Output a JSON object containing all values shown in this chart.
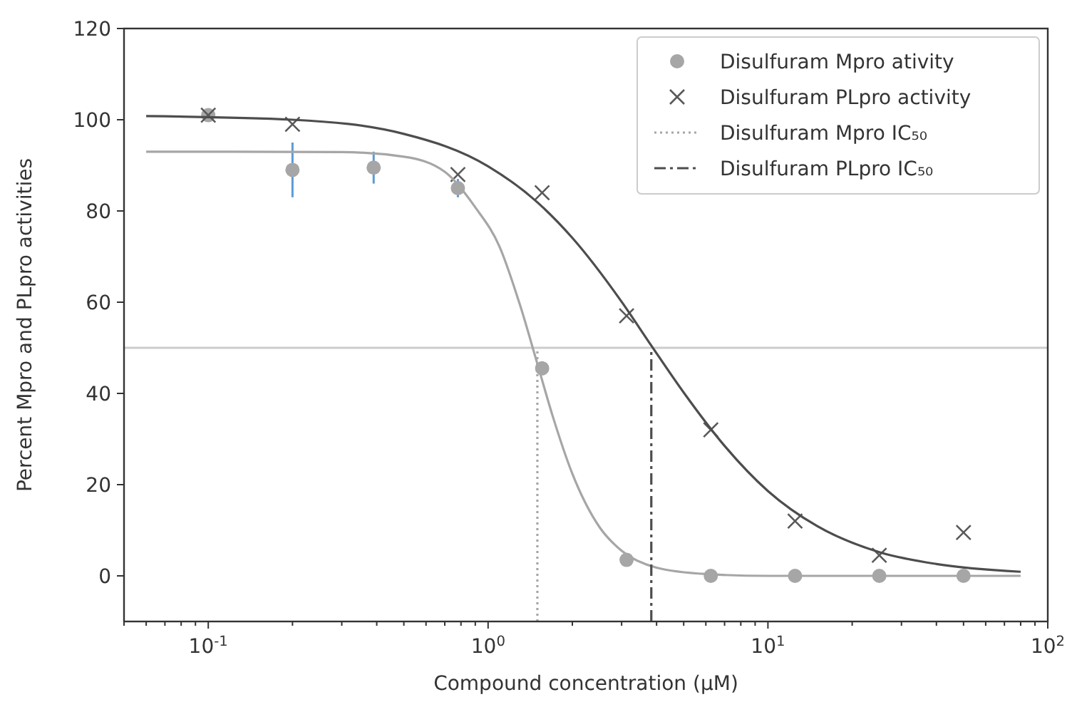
{
  "chart_data": {
    "type": "scatter",
    "xlabel": "Compound concentration (µM)",
    "ylabel": "Percent Mpro and PLpro activities",
    "log": "x",
    "xlim": [
      0.05,
      100
    ],
    "xticks": [
      {
        "value": 0.1,
        "label": "10$^{-1}$"
      },
      {
        "value": 1,
        "label": "10$^{0}$"
      },
      {
        "value": 10,
        "label": "10$^{1}$"
      },
      {
        "value": 100,
        "label": "10$^{2}$"
      }
    ],
    "ylim": [
      -10,
      120
    ],
    "yticks": [
      0,
      20,
      40,
      60,
      80,
      100,
      120
    ],
    "grid": false,
    "legend": "top right",
    "ref_lines": [
      {
        "axis": "y",
        "value": 50,
        "color": "#cccccc",
        "line_style": "solid"
      }
    ],
    "series": [
      {
        "name": "Disulfuram Mpro ativity",
        "marker": "circle",
        "color": "#a6a6a6",
        "x": [
          0.1,
          0.2,
          0.39,
          0.78,
          1.56,
          3.125,
          6.25,
          12.5,
          25,
          50
        ],
        "values": [
          101,
          89,
          89.5,
          85,
          45.5,
          3.5,
          0,
          0,
          0,
          0
        ],
        "errors": [
          null,
          6,
          3.5,
          2,
          null,
          null,
          null,
          null,
          null,
          null
        ]
      },
      {
        "name": "Disulfuram PLpro activity",
        "marker": "cross",
        "color": "#595959",
        "x": [
          0.1,
          0.2,
          0.78,
          1.56,
          3.125,
          6.25,
          12.5,
          25,
          50
        ],
        "values": [
          101,
          99,
          88,
          84,
          57,
          32,
          12,
          4.5,
          9.5
        ]
      },
      {
        "type": "line",
        "marker": "none",
        "line_style": "solid",
        "color": "#a6a6a6",
        "x": [
          0.06,
          0.3,
          0.5,
          0.7,
          0.9,
          1.1,
          1.3,
          1.5,
          1.7,
          2,
          2.5,
          3,
          4,
          6,
          10,
          80
        ],
        "values": [
          93,
          92.9,
          91.9,
          88.6,
          80.8,
          72.1,
          59.4,
          46.5,
          35.1,
          22.4,
          10.7,
          5.5,
          1.8,
          0.4,
          0,
          0
        ]
      },
      {
        "type": "line",
        "marker": "none",
        "line_style": "solid",
        "color": "#4d4d4d",
        "x": [
          0.06,
          0.2,
          0.5,
          1,
          1.5,
          2,
          3,
          3.83,
          5,
          7,
          10,
          15,
          25,
          40,
          80
        ],
        "values": [
          100.8,
          100,
          96.9,
          89.8,
          81.9,
          74.1,
          60.1,
          50.5,
          40.2,
          28.5,
          18.6,
          10.9,
          5.2,
          2.6,
          0.9
        ]
      },
      {
        "name": "Disulfuram Mpro IC₅₀",
        "type": "line",
        "marker": "none",
        "line_style": "dotted",
        "color": "#a6a6a6",
        "x": [
          1.5,
          1.5
        ],
        "values": [
          -10,
          50
        ]
      },
      {
        "name": "Disulfuram PLpro IC₅₀",
        "type": "line",
        "marker": "none",
        "line_style": "dashdot",
        "color": "#4d4d4d",
        "x": [
          3.83,
          3.83
        ],
        "values": [
          -10,
          50
        ]
      }
    ]
  }
}
